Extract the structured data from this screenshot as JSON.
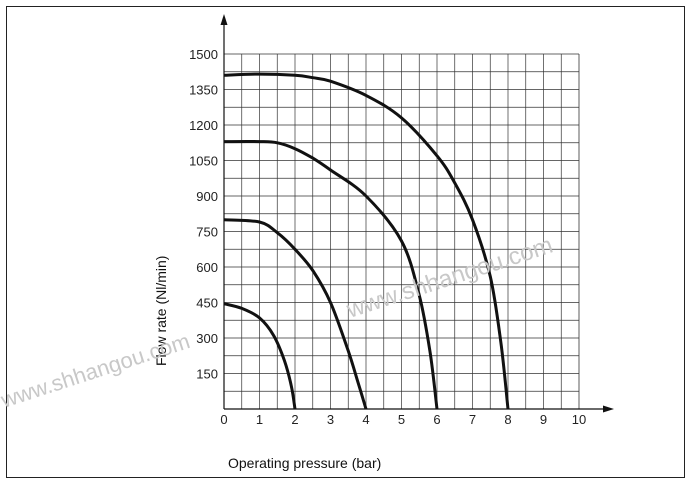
{
  "chart_data": {
    "type": "line",
    "title": "",
    "xlabel": "Operating pressure (bar)",
    "ylabel": "Flow rate (Nl/min)",
    "xlim": [
      0,
      10
    ],
    "ylim": [
      0,
      1500
    ],
    "x_ticks": [
      "0",
      "1",
      "2",
      "3",
      "4",
      "5",
      "6",
      "7",
      "8",
      "9",
      "10"
    ],
    "y_ticks": [
      "150",
      "300",
      "450",
      "600",
      "750",
      "900",
      "1050",
      "1200",
      "1350",
      "1500"
    ],
    "grid": true,
    "series": [
      {
        "x": [
          0,
          0.5,
          1.0,
          1.4,
          1.7,
          1.9,
          2.0
        ],
        "y": [
          445,
          425,
          385,
          310,
          205,
          95,
          0
        ]
      },
      {
        "x": [
          0,
          1.0,
          1.5,
          2.0,
          2.5,
          3.0,
          3.5,
          3.8,
          4.0
        ],
        "y": [
          800,
          790,
          745,
          675,
          585,
          450,
          245,
          100,
          0
        ]
      },
      {
        "x": [
          0,
          1.0,
          1.5,
          2.0,
          2.5,
          3.0,
          4.0,
          5.0,
          5.5,
          5.8,
          6.0
        ],
        "y": [
          1130,
          1130,
          1125,
          1100,
          1060,
          1010,
          900,
          710,
          480,
          245,
          0
        ]
      },
      {
        "x": [
          0,
          1.0,
          2.0,
          2.5,
          3.0,
          4.0,
          5.0,
          6.0,
          6.5,
          7.0,
          7.5,
          7.8,
          8.0
        ],
        "y": [
          1410,
          1415,
          1410,
          1400,
          1385,
          1325,
          1230,
          1070,
          955,
          800,
          560,
          280,
          0
        ]
      }
    ],
    "line_color": "#111111"
  },
  "watermarks": [
    "www.shhangou.com",
    "www.shhangou.com"
  ]
}
